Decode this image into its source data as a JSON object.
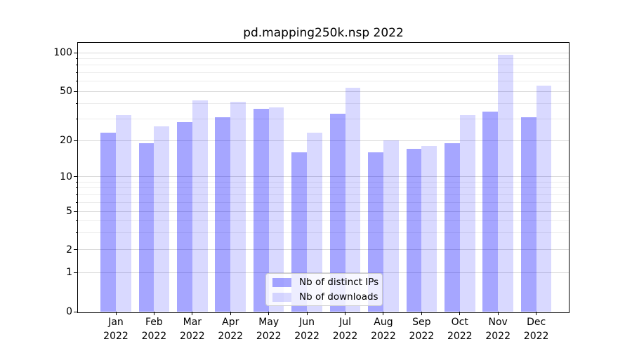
{
  "title": "pd.mapping250k.nsp 2022",
  "chart_data": {
    "type": "bar",
    "title": "pd.mapping250k.nsp 2022",
    "categories": [
      {
        "month": "Jan",
        "year": "2022"
      },
      {
        "month": "Feb",
        "year": "2022"
      },
      {
        "month": "Mar",
        "year": "2022"
      },
      {
        "month": "Apr",
        "year": "2022"
      },
      {
        "month": "May",
        "year": "2022"
      },
      {
        "month": "Jun",
        "year": "2022"
      },
      {
        "month": "Jul",
        "year": "2022"
      },
      {
        "month": "Aug",
        "year": "2022"
      },
      {
        "month": "Sep",
        "year": "2022"
      },
      {
        "month": "Oct",
        "year": "2022"
      },
      {
        "month": "Nov",
        "year": "2022"
      },
      {
        "month": "Dec",
        "year": "2022"
      }
    ],
    "series": [
      {
        "name": "Nb of distinct IPs",
        "color": "rgba(0,0,255,0.35)",
        "values": [
          23,
          19,
          28,
          31,
          36,
          16,
          33,
          16,
          17,
          19,
          34,
          31
        ]
      },
      {
        "name": "Nb of downloads",
        "color": "rgba(0,0,255,0.15)",
        "values": [
          32,
          26,
          42,
          41,
          37,
          23,
          53,
          20,
          18,
          32,
          96,
          55
        ]
      }
    ],
    "y_axis": {
      "scale": "symlog",
      "major_ticks": [
        0,
        1,
        2,
        5,
        10,
        20,
        50,
        100
      ],
      "minor_ticks": [
        3,
        4,
        6,
        7,
        8,
        9,
        30,
        40,
        60,
        70,
        80,
        90
      ],
      "ylim": [
        0,
        119
      ]
    },
    "xlabel": "",
    "ylabel": "",
    "grid": "on",
    "legend_position": "lower center"
  },
  "colors": {
    "background": "#ffffff",
    "grid_major": "#d9d9d9",
    "grid_minor": "#ececec",
    "spine": "#000000",
    "tick": "#000000",
    "bar_distinct_ips": "rgba(0,0,255,0.35)",
    "bar_downloads": "rgba(0,0,255,0.15)",
    "legend_border": "#cccccc",
    "legend_bg": "rgba(255,255,255,0.8)"
  }
}
